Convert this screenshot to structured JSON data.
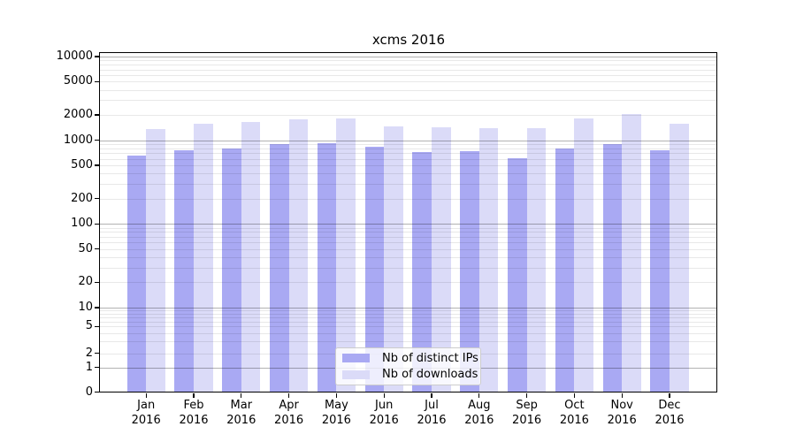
{
  "title": "xcms 2016",
  "colors": {
    "background": "#ffffff",
    "bar_distinct_ips": "#a9a9f3",
    "bar_downloads": "#dbdbf8",
    "axis": "#000000"
  },
  "chart_data": {
    "type": "bar",
    "title": "xcms 2016",
    "months": [
      "Jan",
      "Feb",
      "Mar",
      "Apr",
      "May",
      "Jun",
      "Jul",
      "Aug",
      "Sep",
      "Oct",
      "Nov",
      "Dec"
    ],
    "year": "2016",
    "series": [
      {
        "name": "Nb of distinct IPs",
        "color": "#a9a9f3",
        "values": [
          655,
          750,
          800,
          890,
          930,
          840,
          725,
          745,
          615,
          800,
          905,
          755
        ]
      },
      {
        "name": "Nb of downloads",
        "color": "#dbdbf8",
        "values": [
          1360,
          1575,
          1640,
          1780,
          1800,
          1455,
          1430,
          1405,
          1400,
          1815,
          2030,
          1575
        ]
      }
    ],
    "yaxis": {
      "scale": "log",
      "tick_labels": [
        "10000",
        "5000",
        "2000",
        "1000",
        "500",
        "200",
        "100",
        "50",
        "20",
        "10",
        "5",
        "2",
        "1",
        "0"
      ],
      "range_top": 10000,
      "range_bottom": 0,
      "grid": true
    },
    "legend": {
      "position": "bottom-center",
      "entries": [
        "Nb of distinct IPs",
        "Nb of downloads"
      ]
    }
  }
}
